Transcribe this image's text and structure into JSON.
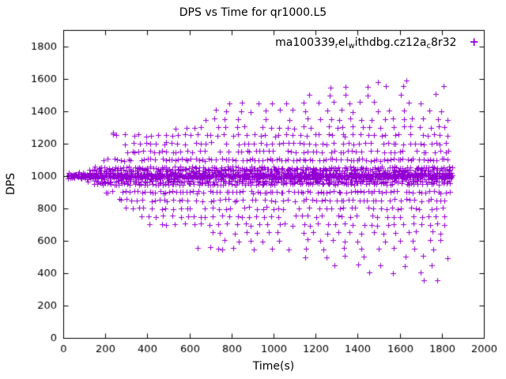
{
  "chart_data": {
    "type": "scatter",
    "title": "DPS vs Time for qr1000.L5",
    "xlabel": "Time(s)",
    "ylabel": "DPS",
    "xlim": [
      0,
      2000
    ],
    "ylim": [
      0,
      1900
    ],
    "xticks": [
      0,
      200,
      400,
      600,
      800,
      1000,
      1200,
      1400,
      1600,
      1800,
      2000
    ],
    "yticks": [
      0,
      200,
      400,
      600,
      800,
      1000,
      1200,
      1400,
      1600,
      1800
    ],
    "grid": false,
    "background_color": "#ffffff",
    "marker": {
      "shape": "plus",
      "color": "#9400D3",
      "size": 7
    },
    "legend": {
      "position": "top-right-inside",
      "label": "ma100339_rel_withdbg.cz12a_c8r32",
      "segments": [
        {
          "t": "ma100339"
        },
        {
          "t": "r",
          "sub": true
        },
        {
          "t": "el"
        },
        {
          "t": "w",
          "sub": true
        },
        {
          "t": "ithdbg.cz12a"
        },
        {
          "t": "c",
          "sub": true
        },
        {
          "t": "8r32"
        }
      ]
    },
    "series": [
      {
        "name": "ma100339_rel_withdbg.cz12a_c8r32",
        "description": "Dense horizontal band at DPS=1000 across full time range, with quantized DPS levels fanning out symmetrically as time increases (spread from ~950-1050 at t=150 up to ~350-1580 at t=1800).",
        "bands": [
          {
            "y": 1000,
            "x0": 20,
            "x1": 1855,
            "step": 4
          },
          {
            "y": 985,
            "x0": 25,
            "x1": 1850,
            "step": 9
          },
          {
            "y": 1015,
            "x0": 30,
            "x1": 1850,
            "step": 9
          },
          {
            "y": 965,
            "x0": 120,
            "x1": 1845,
            "step": 11
          },
          {
            "y": 1035,
            "x0": 125,
            "x1": 1845,
            "step": 11
          },
          {
            "y": 950,
            "x0": 150,
            "x1": 1850,
            "step": 13
          },
          {
            "y": 1050,
            "x0": 155,
            "x1": 1850,
            "step": 13
          },
          {
            "y": 900,
            "x0": 200,
            "x1": 1845,
            "step": 16
          },
          {
            "y": 1100,
            "x0": 195,
            "x1": 1850,
            "step": 16
          },
          {
            "y": 850,
            "x0": 260,
            "x1": 1840,
            "step": 22
          },
          {
            "y": 1150,
            "x0": 255,
            "x1": 1845,
            "step": 22
          },
          {
            "y": 800,
            "x0": 300,
            "x1": 1840,
            "step": 28
          },
          {
            "y": 1200,
            "x0": 290,
            "x1": 1845,
            "step": 26
          },
          {
            "y": 750,
            "x0": 380,
            "x1": 1835,
            "step": 34
          },
          {
            "y": 1250,
            "x0": 230,
            "x1": 1840,
            "step": 32
          },
          {
            "y": 700,
            "x0": 420,
            "x1": 1830,
            "step": 40
          },
          {
            "y": 1300,
            "x0": 540,
            "x1": 1840,
            "step": 40
          },
          {
            "y": 650,
            "x0": 700,
            "x1": 1830,
            "step": 55
          },
          {
            "y": 1350,
            "x0": 620,
            "x1": 1835,
            "step": 50
          },
          {
            "y": 600,
            "x0": 760,
            "x1": 1825,
            "step": 65
          },
          {
            "y": 1400,
            "x0": 720,
            "x1": 1830,
            "step": 60
          },
          {
            "y": 550,
            "x0": 730,
            "x1": 1820,
            "step": 85
          },
          {
            "y": 1450,
            "x0": 790,
            "x1": 1835,
            "step": 70
          },
          {
            "y": 500,
            "x0": 1150,
            "x1": 1815,
            "step": 95
          },
          {
            "y": 1500,
            "x0": 1180,
            "x1": 1830,
            "step": 85
          },
          {
            "y": 450,
            "x0": 1300,
            "x1": 1810,
            "step": 110
          },
          {
            "y": 1550,
            "x0": 1260,
            "x1": 1825,
            "step": 90
          },
          {
            "y": 400,
            "x0": 1450,
            "x1": 1800,
            "step": 130
          },
          {
            "y": 350,
            "x0": 1720,
            "x1": 1790,
            "step": 60
          },
          {
            "y": 1580,
            "x0": 1500,
            "x1": 1760,
            "step": 120
          }
        ],
        "outliers": [
          [
            235,
            1265
          ],
          [
            640,
            555
          ],
          [
            700,
            560
          ],
          [
            755,
            545
          ]
        ]
      }
    ]
  }
}
